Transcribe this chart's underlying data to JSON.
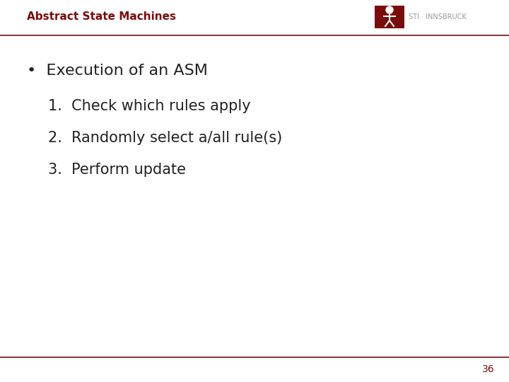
{
  "title": "Abstract State Machines",
  "title_color": "#7B0C0C",
  "title_fontsize": 11,
  "background_color": "#FFFFFF",
  "header_line_color": "#7B0C0C",
  "footer_line_color": "#7B0C0C",
  "page_number": "36",
  "page_number_color": "#7B0C0C",
  "bullet_text": "Execution of an ASM",
  "bullet_color": "#222222",
  "bullet_fontsize": 16,
  "items": [
    "1.  Check which rules apply",
    "2.  Randomly select a/all rule(s)",
    "3.  Perform update"
  ],
  "items_color": "#222222",
  "items_fontsize": 15,
  "logo_box_color": "#7B0C0C",
  "logo_text": "STI · INNSBRUCK",
  "logo_text_color": "#999999"
}
